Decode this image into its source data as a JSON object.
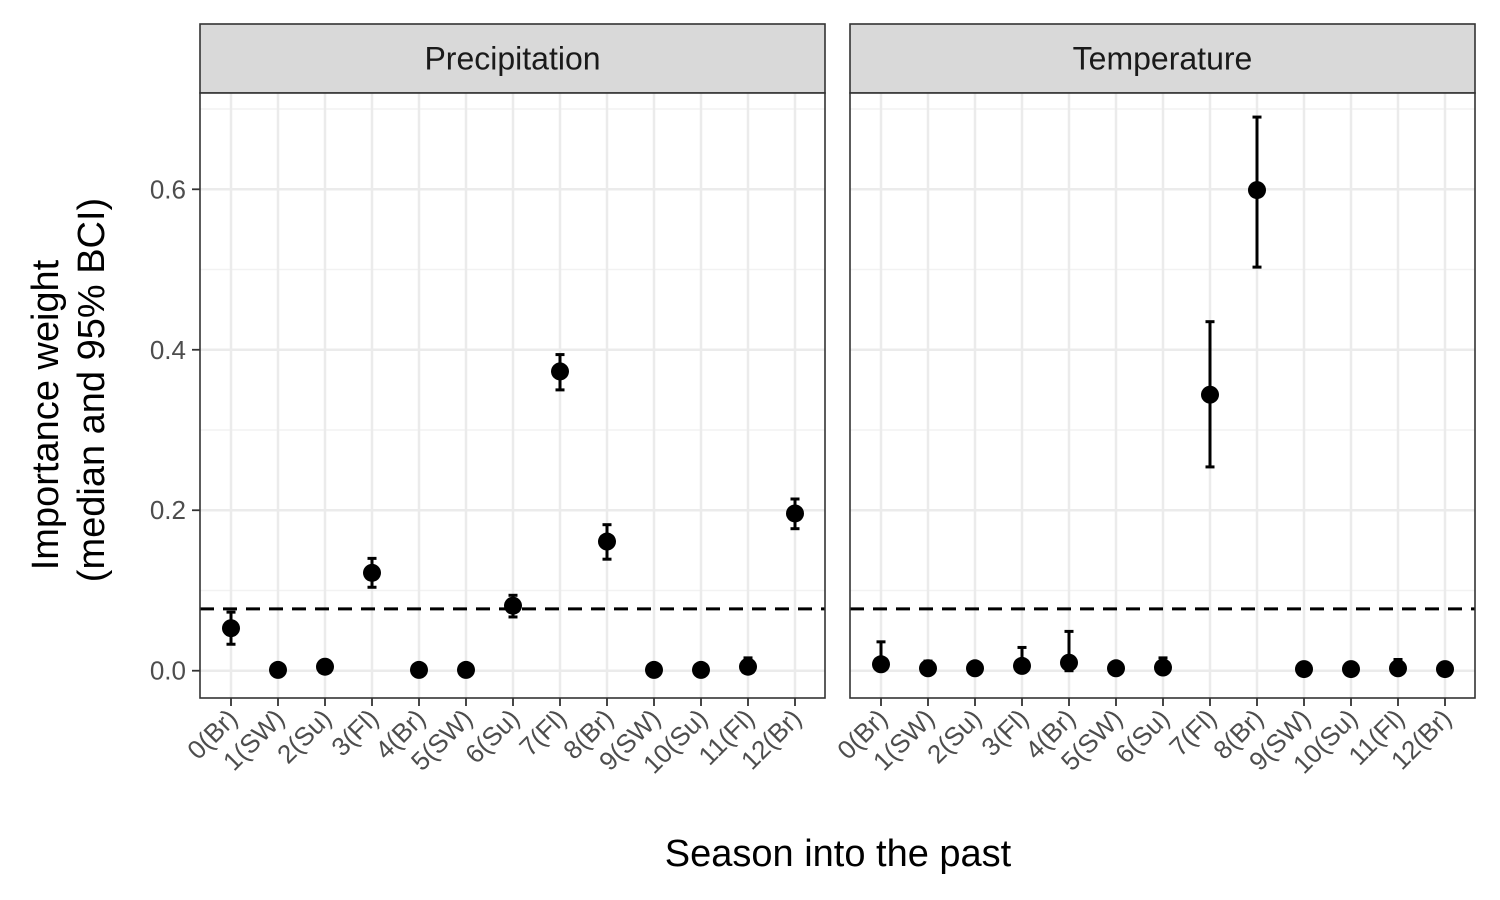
{
  "chart_data": {
    "type": "scatter",
    "xlabel": "Season into the past",
    "ylabel_line1": "Importance weight",
    "ylabel_line2": "(median and 95% BCI)",
    "ylim": [
      -0.034,
      0.72
    ],
    "yticks": [
      0.0,
      0.2,
      0.4,
      0.6
    ],
    "ytick_labels": [
      "0.0",
      "0.2",
      "0.4",
      "0.6"
    ],
    "grid": true,
    "reference_line": 0.077,
    "categories": [
      "0(Br)",
      "1(SW)",
      "2(Su)",
      "3(Fl)",
      "4(Br)",
      "5(SW)",
      "6(Su)",
      "7(Fl)",
      "8(Br)",
      "9(SW)",
      "10(Su)",
      "11(Fl)",
      "12(Br)"
    ],
    "panels": [
      {
        "name": "Precipitation",
        "median": [
          0.053,
          0.001,
          0.005,
          0.122,
          0.001,
          0.001,
          0.081,
          0.373,
          0.161,
          0.001,
          0.001,
          0.005,
          0.196
        ],
        "lower": [
          0.033,
          0.0,
          0.0,
          0.104,
          0.0,
          0.0,
          0.067,
          0.35,
          0.139,
          0.0,
          0.0,
          0.0,
          0.177
        ],
        "upper": [
          0.073,
          0.002,
          0.012,
          0.14,
          0.002,
          0.002,
          0.094,
          0.394,
          0.182,
          0.002,
          0.002,
          0.016,
          0.214
        ]
      },
      {
        "name": "Temperature",
        "median": [
          0.008,
          0.003,
          0.003,
          0.006,
          0.01,
          0.003,
          0.004,
          0.344,
          0.599,
          0.002,
          0.002,
          0.003,
          0.002
        ],
        "lower": [
          0.0,
          0.0,
          0.0,
          0.0,
          0.0,
          0.0,
          0.0,
          0.254,
          0.503,
          0.0,
          0.0,
          0.0,
          0.0
        ],
        "upper": [
          0.036,
          0.012,
          0.008,
          0.029,
          0.049,
          0.01,
          0.016,
          0.435,
          0.69,
          0.004,
          0.004,
          0.014,
          0.004
        ]
      }
    ]
  }
}
